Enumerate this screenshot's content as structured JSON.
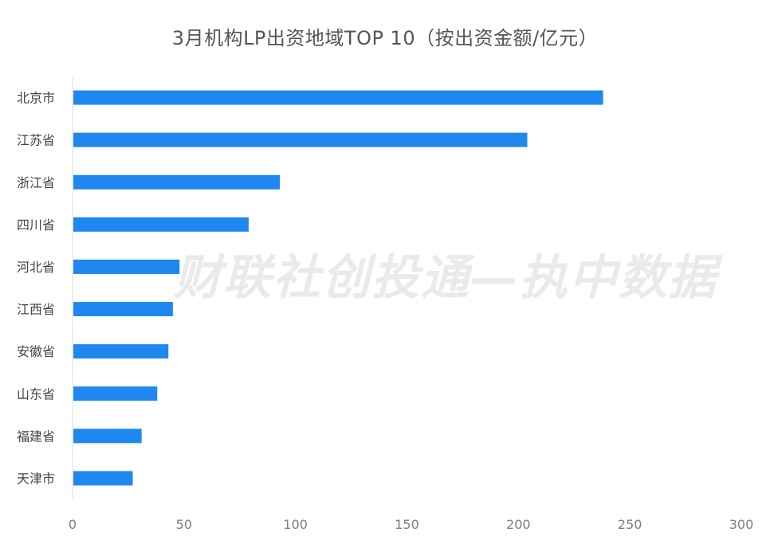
{
  "chart_data": {
    "type": "bar",
    "orientation": "horizontal",
    "title": "3月机构LP出资地域TOP 10（按出资金额/亿元）",
    "categories": [
      "北京市",
      "江苏省",
      "浙江省",
      "四川省",
      "河北省",
      "江西省",
      "安徽省",
      "山东省",
      "福建省",
      "天津市"
    ],
    "values": [
      238,
      204,
      93,
      79,
      48,
      45,
      43,
      38,
      31,
      27
    ],
    "xlim": [
      0,
      300
    ],
    "xticks": [
      "0",
      "50",
      "100",
      "150",
      "200",
      "250",
      "300"
    ],
    "bar_color": "#1e88f0",
    "grid": false,
    "legend": "none"
  },
  "watermark": "财联社创投通—执中数据"
}
